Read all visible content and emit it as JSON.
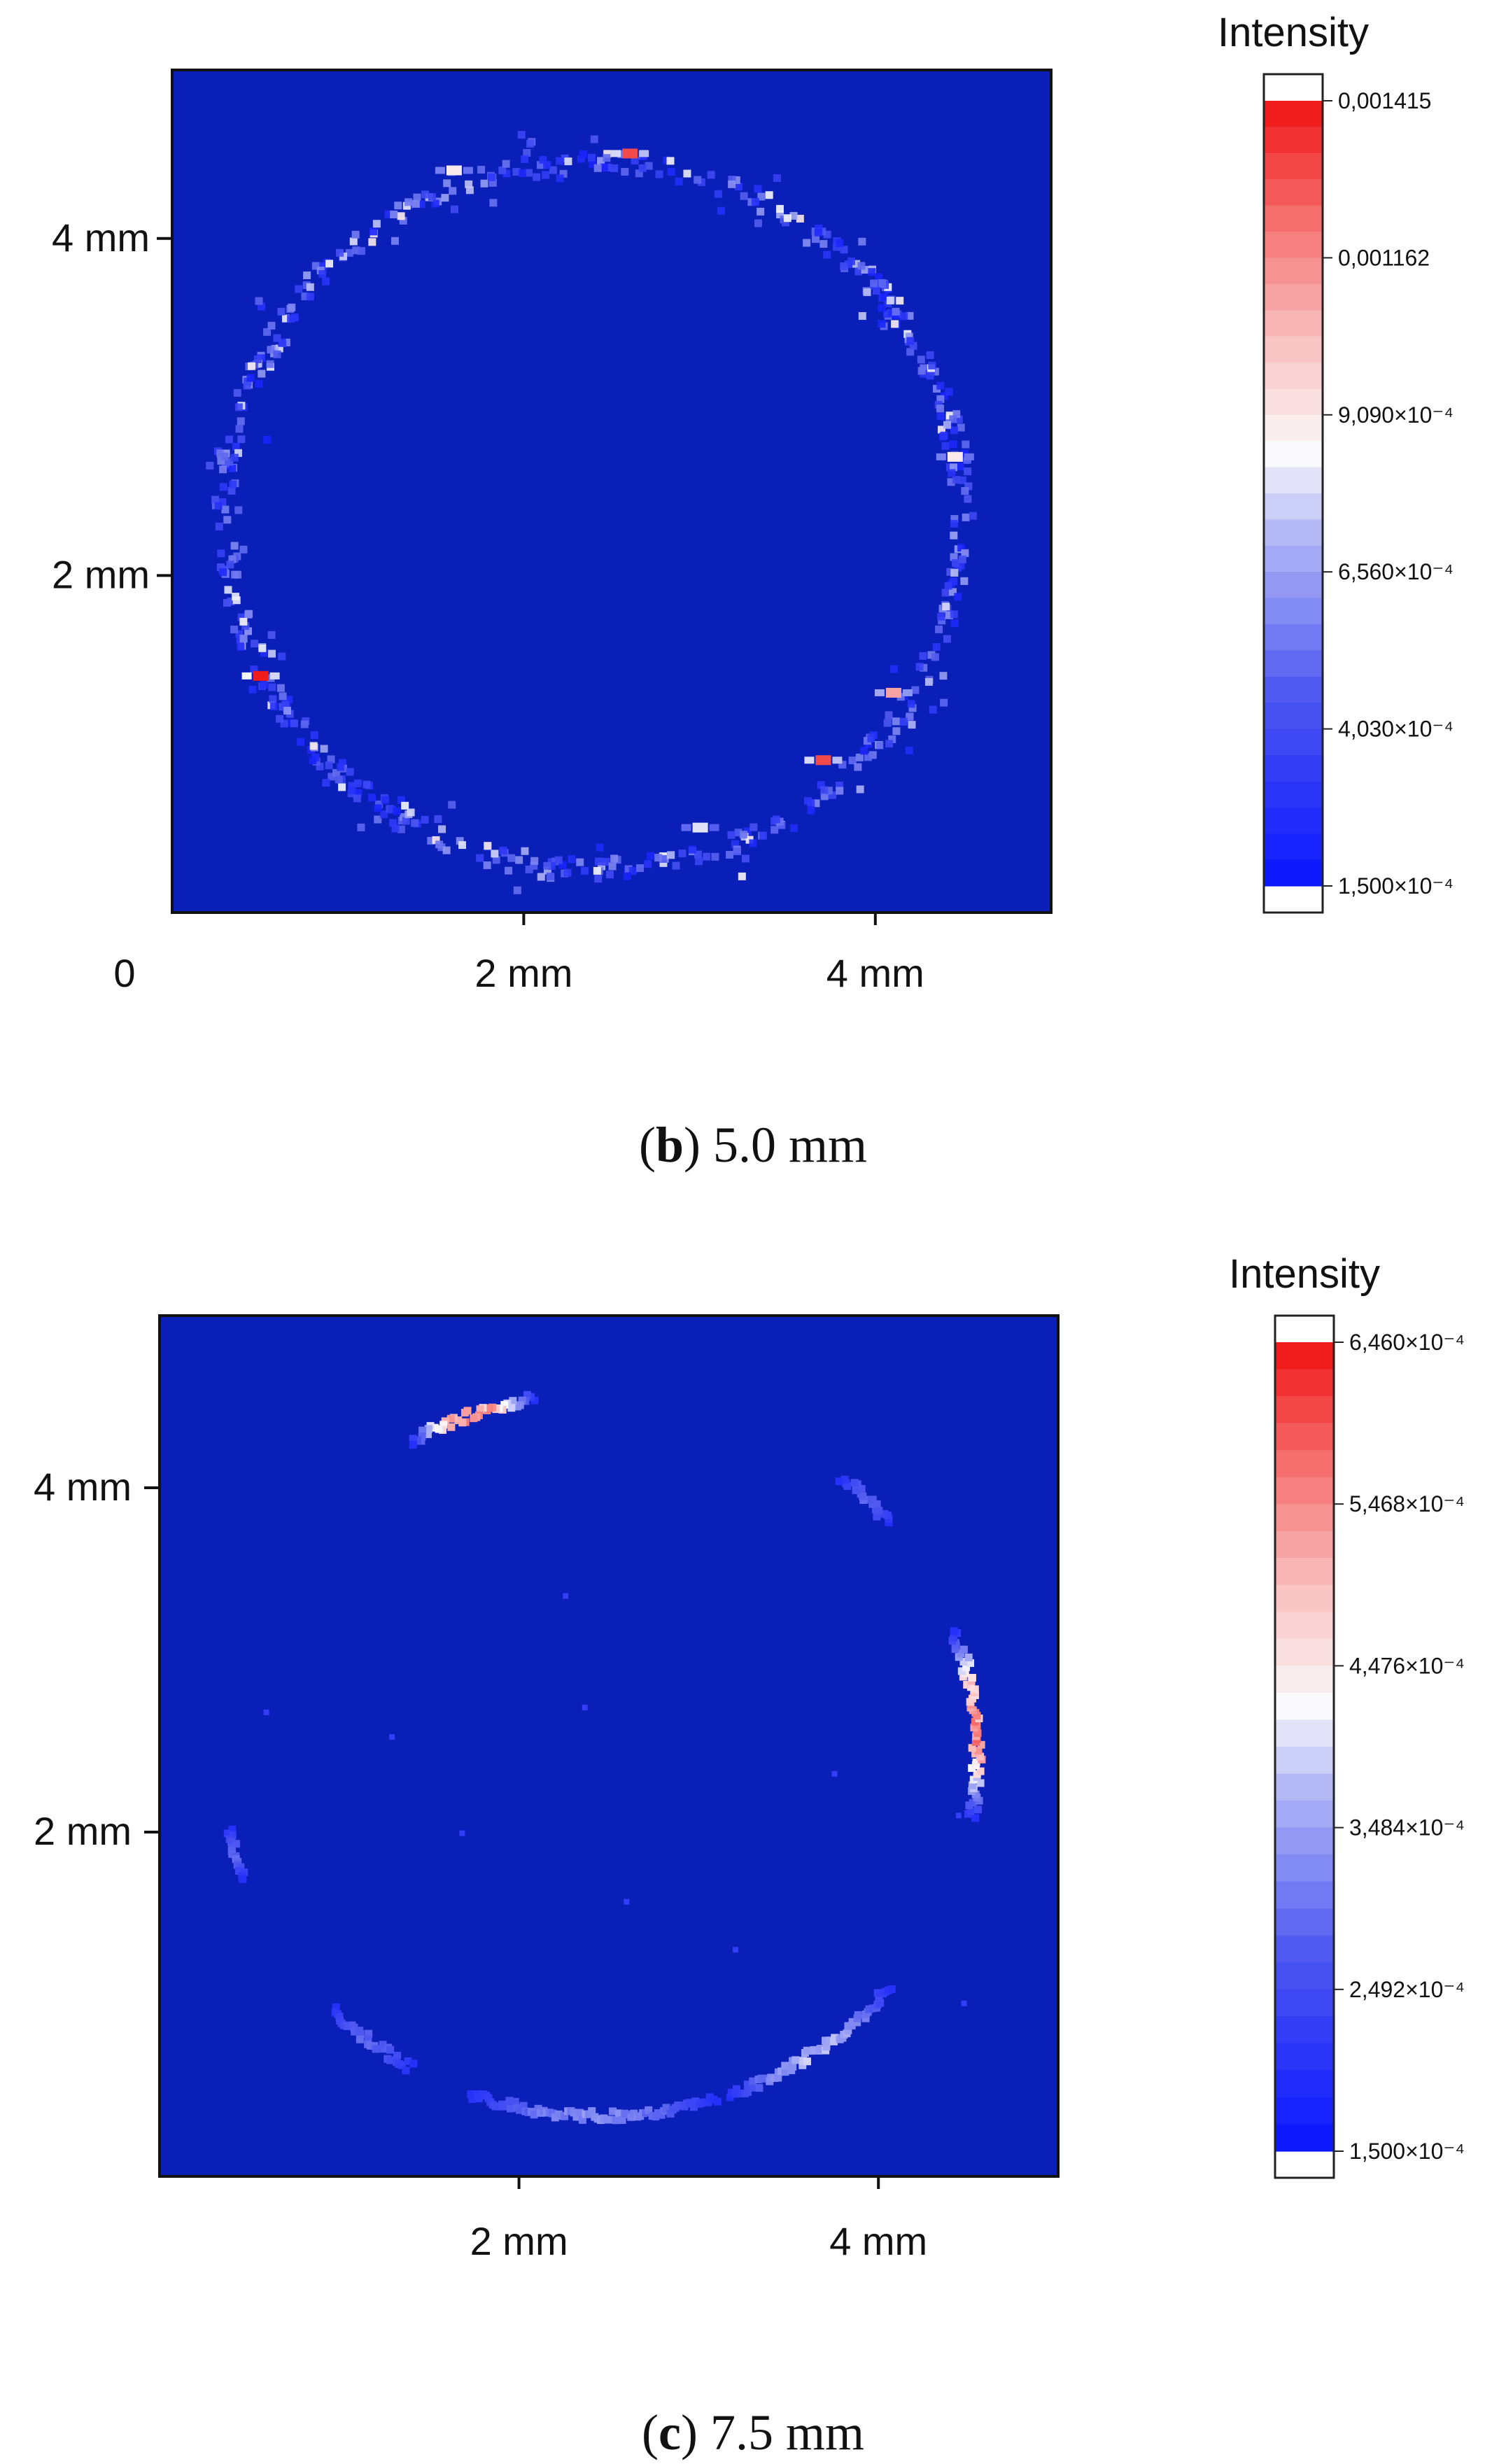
{
  "chart_data": [
    {
      "type": "heatmap",
      "panel_letter": "b",
      "caption": "5.0 mm",
      "x_ticks": [
        "0",
        "2 mm",
        "4 mm"
      ],
      "y_ticks": [
        "4 mm",
        "2 mm"
      ],
      "xlim": [
        0,
        5
      ],
      "ylim": [
        0,
        5
      ],
      "background_color": "#0a1fb8",
      "colorbar": {
        "title": "Intensity",
        "min": 0.00015,
        "max": 0.001415,
        "tick_labels": [
          "0,001415",
          "0,001162",
          "9,090×10⁻⁴",
          "6,560×10⁻⁴",
          "4,030×10⁻⁴",
          "1,500×10⁻⁴"
        ],
        "tick_values": [
          0.001415,
          0.001162,
          0.000909,
          0.000656,
          0.000403,
          0.00015
        ]
      },
      "ring": {
        "center": [
          2.4,
          2.35
        ],
        "radius": 2.1
      },
      "hotspots": [
        {
          "x": 2.6,
          "y": 4.5,
          "intensity": 0.0013
        },
        {
          "x": 1.6,
          "y": 4.4,
          "intensity": 0.0009
        },
        {
          "x": 0.5,
          "y": 1.4,
          "intensity": 0.0014
        },
        {
          "x": 3.7,
          "y": 0.9,
          "intensity": 0.0013
        },
        {
          "x": 4.1,
          "y": 1.3,
          "intensity": 0.0011
        },
        {
          "x": 4.45,
          "y": 2.7,
          "intensity": 0.0009
        },
        {
          "x": 3.0,
          "y": 0.5,
          "intensity": 0.0008
        }
      ]
    },
    {
      "type": "heatmap",
      "panel_letter": "c",
      "caption": "7.5 mm",
      "x_ticks": [
        "2 mm",
        "4 mm"
      ],
      "y_ticks": [
        "4 mm",
        "2 mm"
      ],
      "xlim": [
        0,
        5
      ],
      "ylim": [
        0,
        5
      ],
      "background_color": "#0a1fb8",
      "colorbar": {
        "title": "Intensity",
        "min": 0.00015,
        "max": 0.000646,
        "tick_labels": [
          "6,460×10⁻⁴",
          "5,468×10⁻⁴",
          "4,476×10⁻⁴",
          "3,484×10⁻⁴",
          "2,492×10⁻⁴",
          "1,500×10⁻⁴"
        ],
        "tick_values": [
          0.000646,
          0.0005468,
          0.0004476,
          0.0003484,
          0.0002492,
          0.00015
        ]
      },
      "arcs": [
        {
          "from_deg": 100,
          "to_deg": 120,
          "intensity": 0.0006
        },
        {
          "from_deg": 40,
          "to_deg": 50,
          "intensity": 0.0003
        },
        {
          "from_deg": -10,
          "to_deg": 20,
          "intensity": 0.0006
        },
        {
          "from_deg": -70,
          "to_deg": -40,
          "intensity": 0.0004
        },
        {
          "from_deg": -110,
          "to_deg": -72,
          "intensity": 0.00035
        },
        {
          "from_deg": -135,
          "to_deg": -120,
          "intensity": 0.0003
        },
        {
          "from_deg": -168,
          "to_deg": -160,
          "intensity": 0.0003
        }
      ],
      "ring": {
        "center": [
          2.45,
          2.45
        ],
        "radius": 2.1
      }
    }
  ]
}
